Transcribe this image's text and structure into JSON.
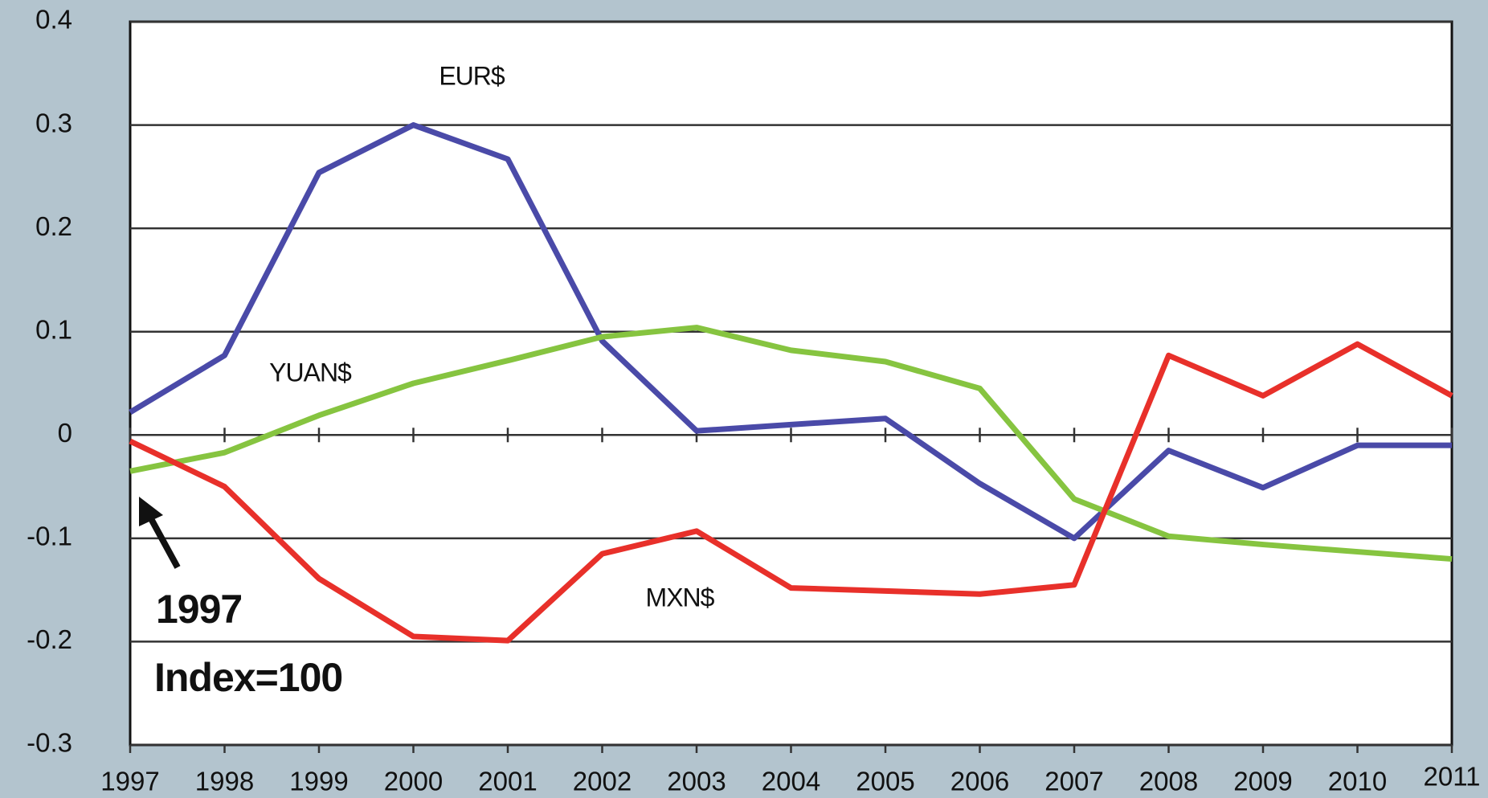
{
  "chart_data": {
    "type": "line",
    "x": [
      1997,
      1998,
      1999,
      2000,
      2001,
      2002,
      2003,
      2004,
      2005,
      2006,
      2007,
      2008,
      2009,
      2010,
      2011
    ],
    "xlim": [
      1997,
      2011
    ],
    "xticks": [
      1997,
      1998,
      1999,
      2000,
      2001,
      2002,
      2003,
      2004,
      2005,
      2006,
      2007,
      2008,
      2009,
      2010,
      2011
    ],
    "ylim": [
      -0.3,
      0.4
    ],
    "yticks": [
      -0.3,
      -0.2,
      -0.1,
      0,
      0.1,
      0.2,
      0.3,
      0.4
    ],
    "grid": true,
    "series": [
      {
        "name": "EUR$",
        "color": "#4a4aa8",
        "values": [
          0.022,
          0.077,
          0.254,
          0.3,
          0.267,
          0.091,
          0.004,
          0.01,
          0.016,
          -0.047,
          -0.1,
          -0.015,
          -0.051,
          -0.01,
          -0.01
        ]
      },
      {
        "name": "YUAN$",
        "color": "#86c440",
        "values": [
          -0.035,
          -0.017,
          0.019,
          0.05,
          0.072,
          0.095,
          0.104,
          0.082,
          0.071,
          0.045,
          -0.062,
          -0.098,
          -0.106,
          -0.113,
          -0.12
        ]
      },
      {
        "name": "MXN$",
        "color": "#e8302a",
        "values": [
          -0.006,
          -0.05,
          -0.139,
          -0.195,
          -0.199,
          -0.115,
          -0.093,
          -0.148,
          -0.151,
          -0.154,
          -0.145,
          0.077,
          0.038,
          0.088,
          0.038
        ]
      }
    ],
    "annotations": [
      "1997",
      "Index=100"
    ]
  }
}
